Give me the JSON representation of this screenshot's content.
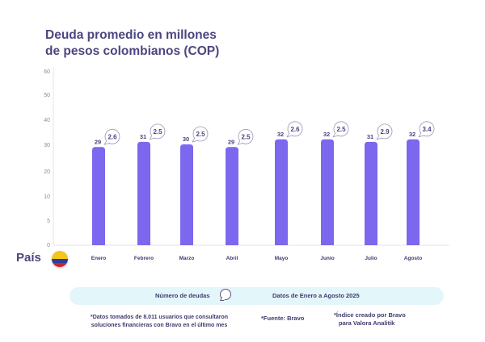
{
  "title": {
    "line1": "Deuda promedio en millones",
    "line2": "de pesos colombianos (COP)"
  },
  "chart_data": {
    "type": "bar",
    "title": "Deuda promedio en millones de pesos colombianos (COP)",
    "categories": [
      "Enero",
      "Febrero",
      "Marzo",
      "Abril",
      "Mayo",
      "Junio",
      "Julio",
      "Agosto"
    ],
    "series": [
      {
        "name": "Deuda promedio (millones COP)",
        "values": [
          29,
          31,
          30,
          29,
          32,
          32,
          31,
          32
        ]
      },
      {
        "name": "Número de deudas",
        "values": [
          2.6,
          2.5,
          2.5,
          2.5,
          2.6,
          2.5,
          2.9,
          3.4
        ]
      }
    ],
    "yticks": [
      0,
      5,
      10,
      20,
      30,
      40,
      50,
      60
    ],
    "ylim": [
      0,
      60
    ],
    "xlabel": "País",
    "ylabel": "",
    "grid": false,
    "colors": {
      "bar": "#7b68ee",
      "axis": "#e6e6ee",
      "label": "#4b4680"
    }
  },
  "country_label": "País",
  "country_flag": "colombia-flag-icon",
  "legend": {
    "deudas_label": "Número de deudas",
    "periodo": "Datos de Enero a Agosto 2025"
  },
  "footnotes": {
    "datos_line1": "*Datos tomados de 8.011 usuarios que consultaron",
    "datos_line2": "soluciones financieras con Bravo en el último mes",
    "fuente": "*Fuente: Bravo",
    "indice_line1": "*Índice creado por Bravo",
    "indice_line2": "para Valora Analitik"
  }
}
